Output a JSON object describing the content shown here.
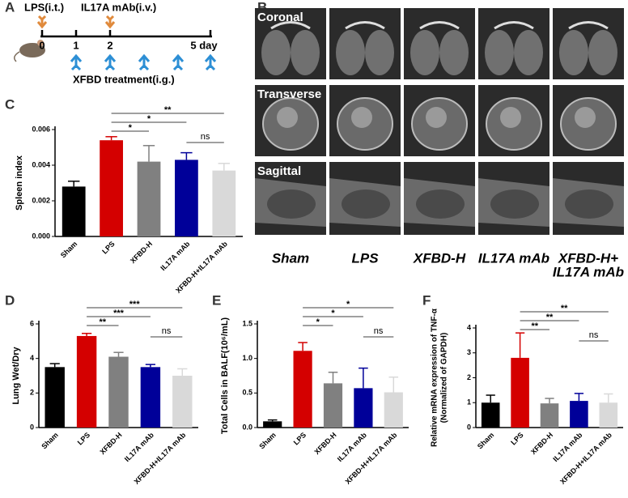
{
  "panel_labels": [
    "A",
    "B",
    "C",
    "D",
    "E",
    "F"
  ],
  "timeline": {
    "drugs": [
      "LPS(i.t.)",
      "IL17A mAb(i.v.)"
    ],
    "days": [
      "0",
      "1",
      "2",
      "5 day"
    ],
    "treatment": "XFBD treatment(i.g.)"
  },
  "imaging": {
    "rows": [
      "Coronal",
      "Transverse",
      "Sagittal"
    ],
    "columns": [
      [
        "Sham"
      ],
      [
        "LPS"
      ],
      [
        "XFBD-H"
      ],
      [
        "IL17A mAb"
      ],
      [
        "XFBD-H+",
        "IL17A mAb"
      ]
    ]
  },
  "chart_data": [
    {
      "type": "bar",
      "ylabel": [
        "Spleen index"
      ],
      "categories": [
        "Sham",
        "LPS",
        "XFBD-H",
        "IL17A mAb",
        "XFBD-H+IL17A mAb"
      ],
      "values": [
        0.0028,
        0.0054,
        0.0042,
        0.0043,
        0.0037
      ],
      "errors": [
        0.0003,
        0.0002,
        0.0009,
        0.0004,
        0.0004
      ],
      "colors": [
        "#000000",
        "#d40000",
        "#808080",
        "#000099",
        "#d9d9d9"
      ],
      "ylim": [
        0,
        0.006
      ],
      "yticks": [
        {
          "value": 0,
          "label": "0.000"
        },
        {
          "value": 0.002,
          "label": "0.002"
        },
        {
          "value": 0.004,
          "label": "0.004"
        },
        {
          "value": 0.006,
          "label": "0.006"
        }
      ],
      "comparisons": [
        {
          "label": "**",
          "groups": [
            "LPS",
            "XFBD-H+IL17A mAb"
          ]
        },
        {
          "label": "*",
          "groups": [
            "LPS",
            "IL17A mAb"
          ]
        },
        {
          "label": "*",
          "groups": [
            "LPS",
            "XFBD-H"
          ]
        },
        {
          "label": "ns",
          "groups": [
            "IL17A mAb",
            "XFBD-H+IL17A mAb"
          ]
        }
      ]
    },
    {
      "type": "bar",
      "ylabel": [
        "Lung Wet/Dry"
      ],
      "categories": [
        "Sham",
        "LPS",
        "XFBD-H",
        "IL17A mAb",
        "XFBD-H+IL17A mAb"
      ],
      "values": [
        3.5,
        5.3,
        4.1,
        3.5,
        3.0
      ],
      "errors": [
        0.2,
        0.15,
        0.25,
        0.15,
        0.4
      ],
      "colors": [
        "#000000",
        "#d40000",
        "#808080",
        "#000099",
        "#d9d9d9"
      ],
      "ylim": [
        0,
        6
      ],
      "yticks": [
        0,
        2,
        4,
        6
      ],
      "comparisons": [
        {
          "label": "***",
          "groups": [
            "LPS",
            "XFBD-H+IL17A mAb"
          ]
        },
        {
          "label": "***",
          "groups": [
            "LPS",
            "IL17A mAb"
          ]
        },
        {
          "label": "**",
          "groups": [
            "LPS",
            "XFBD-H"
          ]
        },
        {
          "label": "ns",
          "groups": [
            "IL17A mAb",
            "XFBD-H+IL17A mAb"
          ]
        }
      ]
    },
    {
      "type": "bar",
      "ylabel": [
        "Total Cells in BALF(10⁶/mL)"
      ],
      "categories": [
        "Sham",
        "LPS",
        "XFBD-H",
        "IL17A mAb",
        "XFBD-H+IL17A mAb"
      ],
      "values": [
        0.09,
        1.11,
        0.64,
        0.57,
        0.51
      ],
      "errors": [
        0.02,
        0.12,
        0.16,
        0.29,
        0.22
      ],
      "colors": [
        "#000000",
        "#d40000",
        "#808080",
        "#000099",
        "#d9d9d9"
      ],
      "ylim": [
        0,
        1.5
      ],
      "yticks": [
        {
          "value": 0,
          "label": "0.0"
        },
        {
          "value": 0.5,
          "label": "0.5"
        },
        {
          "value": 1,
          "label": "1.0"
        },
        {
          "value": 1.5,
          "label": "1.5"
        }
      ],
      "comparisons": [
        {
          "label": "*",
          "groups": [
            "LPS",
            "XFBD-H+IL17A mAb"
          ]
        },
        {
          "label": "*",
          "groups": [
            "LPS",
            "IL17A mAb"
          ]
        },
        {
          "label": "*",
          "groups": [
            "LPS",
            "XFBD-H"
          ]
        },
        {
          "label": "ns",
          "groups": [
            "IL17A mAb",
            "XFBD-H+IL17A mAb"
          ]
        }
      ]
    },
    {
      "type": "bar",
      "ylabel": [
        "Relative mRNA expression of TNF-α",
        "(Normalized of GAPDH)"
      ],
      "categories": [
        "Sham",
        "LPS",
        "XFBD-H",
        "IL17A mAb",
        "XFBD-H+IL17A mAb"
      ],
      "values": [
        1.0,
        2.8,
        0.97,
        1.07,
        1.0
      ],
      "errors": [
        0.3,
        1.0,
        0.2,
        0.3,
        0.35
      ],
      "colors": [
        "#000000",
        "#d40000",
        "#808080",
        "#000099",
        "#d9d9d9"
      ],
      "ylim": [
        0,
        4
      ],
      "yticks": [
        0,
        1,
        2,
        3,
        4
      ],
      "comparisons": [
        {
          "label": "**",
          "groups": [
            "LPS",
            "XFBD-H+IL17A mAb"
          ]
        },
        {
          "label": "**",
          "groups": [
            "LPS",
            "IL17A mAb"
          ]
        },
        {
          "label": "**",
          "groups": [
            "LPS",
            "XFBD-H"
          ]
        },
        {
          "label": "ns",
          "groups": [
            "IL17A mAb",
            "XFBD-H+IL17A mAb"
          ]
        }
      ]
    }
  ]
}
